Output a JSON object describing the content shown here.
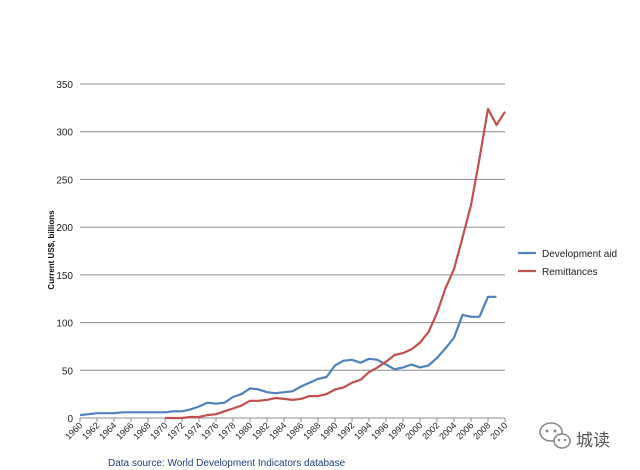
{
  "chart_data": {
    "type": "line",
    "title": "",
    "xlabel": "",
    "ylabel": "Current US$, billions",
    "ylim": [
      0,
      350
    ],
    "yticks": [
      0,
      50,
      100,
      150,
      200,
      250,
      300,
      350
    ],
    "xlim": [
      1960,
      2010
    ],
    "xticks": [
      1960,
      1962,
      1964,
      1966,
      1968,
      1970,
      1972,
      1974,
      1976,
      1978,
      1980,
      1982,
      1984,
      1986,
      1988,
      1990,
      1992,
      1994,
      1996,
      1998,
      2000,
      2002,
      2004,
      2006,
      2008,
      2010
    ],
    "grid": true,
    "legend_position": "right",
    "series": [
      {
        "name": "Development aid",
        "color": "#4f81bd",
        "x": [
          1960,
          1961,
          1962,
          1963,
          1964,
          1965,
          1966,
          1967,
          1968,
          1969,
          1970,
          1971,
          1972,
          1973,
          1974,
          1975,
          1976,
          1977,
          1978,
          1979,
          1980,
          1981,
          1982,
          1983,
          1984,
          1985,
          1986,
          1987,
          1988,
          1989,
          1990,
          1991,
          1992,
          1993,
          1994,
          1995,
          1996,
          1997,
          1998,
          1999,
          2000,
          2001,
          2002,
          2003,
          2004,
          2005,
          2006,
          2007,
          2008,
          2009
        ],
        "values": [
          3,
          4,
          5,
          5,
          5,
          6,
          6,
          6,
          6,
          6,
          6,
          7,
          7,
          9,
          12,
          16,
          15,
          16,
          22,
          25,
          31,
          30,
          27,
          26,
          27,
          28,
          33,
          37,
          41,
          43,
          55,
          60,
          61,
          58,
          62,
          61,
          56,
          51,
          53,
          56,
          53,
          55,
          63,
          73,
          84,
          108,
          106,
          106,
          127,
          127
        ]
      },
      {
        "name": "Remittances",
        "color": "#c0504d",
        "x": [
          1970,
          1971,
          1972,
          1973,
          1974,
          1975,
          1976,
          1977,
          1978,
          1979,
          1980,
          1981,
          1982,
          1983,
          1984,
          1985,
          1986,
          1987,
          1988,
          1989,
          1990,
          1991,
          1992,
          1993,
          1994,
          1995,
          1996,
          1997,
          1998,
          1999,
          2000,
          2001,
          2002,
          2003,
          2004,
          2005,
          2006,
          2007,
          2008,
          2009,
          2010
        ],
        "values": [
          0,
          0,
          0,
          1,
          1,
          3,
          4,
          7,
          10,
          13,
          18,
          18,
          19,
          21,
          20,
          19,
          20,
          23,
          23,
          25,
          30,
          32,
          37,
          40,
          48,
          53,
          59,
          66,
          68,
          72,
          79,
          90,
          110,
          136,
          156,
          189,
          223,
          272,
          324,
          307,
          321
        ]
      }
    ],
    "footnote": "Data source: World Development Indicators database"
  },
  "watermark": {
    "text": "城读",
    "icon": "wechat-icon"
  }
}
